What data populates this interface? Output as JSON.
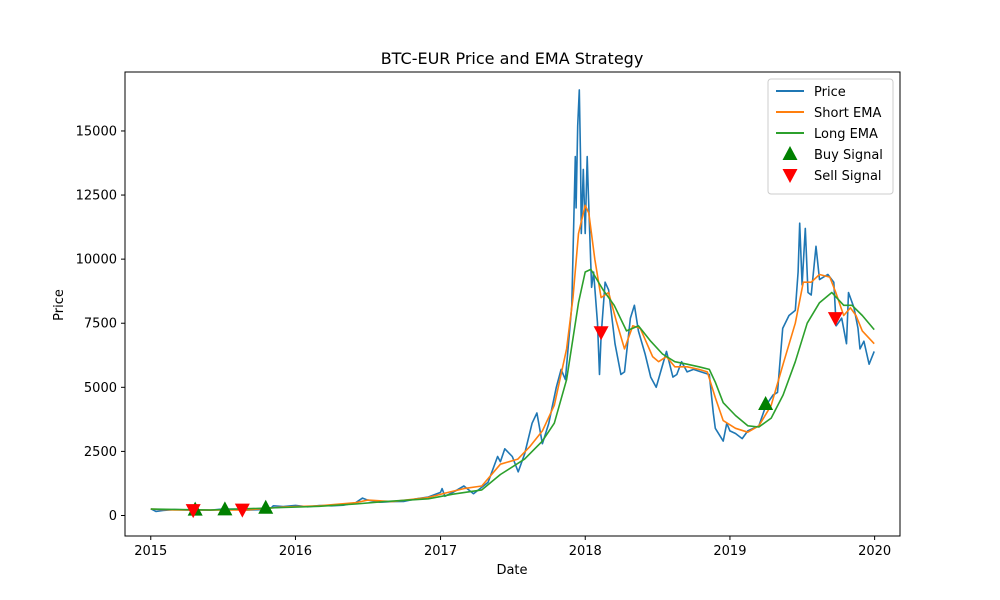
{
  "chart_data": {
    "type": "line",
    "title": "BTC-EUR Price and EMA Strategy",
    "xlabel": "Date",
    "ylabel": "Price",
    "x_range": [
      "2014-10-28",
      "2020-03-05"
    ],
    "y_range": [
      -800,
      17300
    ],
    "x_ticks": [
      {
        "date": "2015-01-01",
        "label": "2015"
      },
      {
        "date": "2016-01-01",
        "label": "2016"
      },
      {
        "date": "2017-01-01",
        "label": "2017"
      },
      {
        "date": "2018-01-01",
        "label": "2018"
      },
      {
        "date": "2019-01-01",
        "label": "2019"
      },
      {
        "date": "2020-01-01",
        "label": "2020"
      }
    ],
    "y_ticks": [
      0,
      2500,
      5000,
      7500,
      10000,
      12500,
      15000
    ],
    "grid": false,
    "legend_position": "top-right",
    "series": [
      {
        "name": "Price",
        "color": "#1f77b4",
        "points": [
          [
            "2015-01-01",
            260
          ],
          [
            "2015-01-14",
            160
          ],
          [
            "2015-02-01",
            200
          ],
          [
            "2015-03-01",
            230
          ],
          [
            "2015-04-01",
            220
          ],
          [
            "2015-05-01",
            210
          ],
          [
            "2015-06-01",
            205
          ],
          [
            "2015-07-01",
            250
          ],
          [
            "2015-08-01",
            250
          ],
          [
            "2015-09-01",
            210
          ],
          [
            "2015-10-01",
            225
          ],
          [
            "2015-11-01",
            300
          ],
          [
            "2015-11-06",
            380
          ],
          [
            "2015-12-01",
            350
          ],
          [
            "2016-01-01",
            395
          ],
          [
            "2016-02-01",
            340
          ],
          [
            "2016-03-01",
            390
          ],
          [
            "2016-04-01",
            380
          ],
          [
            "2016-05-01",
            400
          ],
          [
            "2016-06-01",
            500
          ],
          [
            "2016-06-18",
            680
          ],
          [
            "2016-07-01",
            600
          ],
          [
            "2016-08-01",
            520
          ],
          [
            "2016-09-01",
            540
          ],
          [
            "2016-10-01",
            550
          ],
          [
            "2016-11-01",
            650
          ],
          [
            "2016-12-01",
            720
          ],
          [
            "2017-01-01",
            900
          ],
          [
            "2017-01-05",
            1050
          ],
          [
            "2017-01-12",
            750
          ],
          [
            "2017-02-01",
            900
          ],
          [
            "2017-03-01",
            1150
          ],
          [
            "2017-03-25",
            850
          ],
          [
            "2017-04-15",
            1100
          ],
          [
            "2017-05-01",
            1300
          ],
          [
            "2017-05-25",
            2300
          ],
          [
            "2017-06-01",
            2100
          ],
          [
            "2017-06-12",
            2600
          ],
          [
            "2017-07-01",
            2300
          ],
          [
            "2017-07-16",
            1700
          ],
          [
            "2017-08-01",
            2400
          ],
          [
            "2017-08-20",
            3600
          ],
          [
            "2017-09-01",
            4000
          ],
          [
            "2017-09-15",
            2800
          ],
          [
            "2017-10-01",
            3600
          ],
          [
            "2017-10-20",
            5000
          ],
          [
            "2017-11-01",
            5700
          ],
          [
            "2017-11-12",
            5300
          ],
          [
            "2017-11-28",
            8200
          ],
          [
            "2017-12-07",
            14000
          ],
          [
            "2017-12-09",
            12000
          ],
          [
            "2017-12-13",
            15200
          ],
          [
            "2017-12-17",
            16600
          ],
          [
            "2017-12-20",
            14000
          ],
          [
            "2017-12-22",
            11000
          ],
          [
            "2017-12-27",
            13500
          ],
          [
            "2018-01-01",
            11000
          ],
          [
            "2018-01-06",
            14000
          ],
          [
            "2018-01-09",
            12500
          ],
          [
            "2018-01-17",
            8900
          ],
          [
            "2018-01-22",
            9500
          ],
          [
            "2018-02-01",
            7500
          ],
          [
            "2018-02-06",
            5500
          ],
          [
            "2018-02-10",
            7000
          ],
          [
            "2018-02-20",
            9100
          ],
          [
            "2018-03-01",
            8800
          ],
          [
            "2018-03-17",
            6700
          ],
          [
            "2018-04-01",
            5500
          ],
          [
            "2018-04-10",
            5600
          ],
          [
            "2018-04-25",
            7700
          ],
          [
            "2018-05-05",
            8200
          ],
          [
            "2018-05-15",
            7200
          ],
          [
            "2018-06-01",
            6300
          ],
          [
            "2018-06-15",
            5400
          ],
          [
            "2018-06-29",
            5000
          ],
          [
            "2018-07-10",
            5600
          ],
          [
            "2018-07-25",
            6400
          ],
          [
            "2018-08-10",
            5400
          ],
          [
            "2018-08-20",
            5500
          ],
          [
            "2018-09-01",
            6000
          ],
          [
            "2018-09-15",
            5600
          ],
          [
            "2018-10-01",
            5700
          ],
          [
            "2018-10-20",
            5600
          ],
          [
            "2018-11-10",
            5500
          ],
          [
            "2018-11-20",
            4000
          ],
          [
            "2018-11-25",
            3400
          ],
          [
            "2018-12-15",
            2900
          ],
          [
            "2018-12-24",
            3600
          ],
          [
            "2019-01-01",
            3300
          ],
          [
            "2019-01-15",
            3200
          ],
          [
            "2019-02-01",
            3000
          ],
          [
            "2019-02-15",
            3300
          ],
          [
            "2019-03-01",
            3400
          ],
          [
            "2019-03-15",
            3500
          ],
          [
            "2019-04-02",
            4300
          ],
          [
            "2019-04-20",
            4700
          ],
          [
            "2019-05-01",
            4800
          ],
          [
            "2019-05-14",
            7300
          ],
          [
            "2019-05-30",
            7800
          ],
          [
            "2019-06-15",
            8000
          ],
          [
            "2019-06-22",
            9500
          ],
          [
            "2019-06-26",
            11400
          ],
          [
            "2019-07-02",
            9000
          ],
          [
            "2019-07-10",
            11200
          ],
          [
            "2019-07-17",
            8700
          ],
          [
            "2019-07-25",
            8600
          ],
          [
            "2019-08-06",
            10500
          ],
          [
            "2019-08-15",
            9200
          ],
          [
            "2019-08-25",
            9300
          ],
          [
            "2019-09-05",
            9400
          ],
          [
            "2019-09-20",
            9100
          ],
          [
            "2019-09-26",
            7400
          ],
          [
            "2019-10-10",
            7700
          ],
          [
            "2019-10-22",
            6700
          ],
          [
            "2019-10-27",
            8700
          ],
          [
            "2019-11-10",
            8100
          ],
          [
            "2019-11-20",
            7300
          ],
          [
            "2019-11-25",
            6500
          ],
          [
            "2019-12-05",
            6800
          ],
          [
            "2019-12-18",
            5900
          ],
          [
            "2019-12-31",
            6400
          ]
        ]
      },
      {
        "name": "Short EMA",
        "color": "#ff7f0e",
        "points": [
          [
            "2015-01-01",
            250
          ],
          [
            "2015-03-01",
            220
          ],
          [
            "2015-06-01",
            210
          ],
          [
            "2015-09-01",
            220
          ],
          [
            "2015-12-01",
            330
          ],
          [
            "2016-03-01",
            380
          ],
          [
            "2016-06-01",
            500
          ],
          [
            "2016-07-01",
            600
          ],
          [
            "2016-09-01",
            540
          ],
          [
            "2016-12-01",
            700
          ],
          [
            "2017-01-15",
            880
          ],
          [
            "2017-03-01",
            1050
          ],
          [
            "2017-04-15",
            1150
          ],
          [
            "2017-06-01",
            2000
          ],
          [
            "2017-07-15",
            2200
          ],
          [
            "2017-08-15",
            2700
          ],
          [
            "2017-09-15",
            3300
          ],
          [
            "2017-10-15",
            4300
          ],
          [
            "2017-11-15",
            6500
          ],
          [
            "2017-12-01",
            8500
          ],
          [
            "2017-12-15",
            11000
          ],
          [
            "2018-01-01",
            12100
          ],
          [
            "2018-01-10",
            11800
          ],
          [
            "2018-01-25",
            10000
          ],
          [
            "2018-02-10",
            8500
          ],
          [
            "2018-03-01",
            8700
          ],
          [
            "2018-03-20",
            7600
          ],
          [
            "2018-04-10",
            6500
          ],
          [
            "2018-05-01",
            7400
          ],
          [
            "2018-05-20",
            7300
          ],
          [
            "2018-06-20",
            6200
          ],
          [
            "2018-07-05",
            6000
          ],
          [
            "2018-07-25",
            6200
          ],
          [
            "2018-08-15",
            5800
          ],
          [
            "2018-09-15",
            5800
          ],
          [
            "2018-10-15",
            5700
          ],
          [
            "2018-11-05",
            5600
          ],
          [
            "2018-11-25",
            4600
          ],
          [
            "2018-12-15",
            3700
          ],
          [
            "2019-01-15",
            3400
          ],
          [
            "2019-02-15",
            3250
          ],
          [
            "2019-03-15",
            3500
          ],
          [
            "2019-04-15",
            4300
          ],
          [
            "2019-05-15",
            5900
          ],
          [
            "2019-06-15",
            7500
          ],
          [
            "2019-07-05",
            9100
          ],
          [
            "2019-07-25",
            9100
          ],
          [
            "2019-08-15",
            9400
          ],
          [
            "2019-09-10",
            9300
          ],
          [
            "2019-09-25",
            8700
          ],
          [
            "2019-10-15",
            7800
          ],
          [
            "2019-11-01",
            8100
          ],
          [
            "2019-11-15",
            7800
          ],
          [
            "2019-12-01",
            7200
          ],
          [
            "2019-12-31",
            6700
          ]
        ]
      },
      {
        "name": "Long EMA",
        "color": "#2ca02c",
        "points": [
          [
            "2015-01-01",
            250
          ],
          [
            "2015-06-01",
            215
          ],
          [
            "2015-12-01",
            310
          ],
          [
            "2016-03-01",
            360
          ],
          [
            "2016-06-01",
            450
          ],
          [
            "2016-08-01",
            530
          ],
          [
            "2016-12-01",
            650
          ],
          [
            "2017-02-01",
            830
          ],
          [
            "2017-04-15",
            1000
          ],
          [
            "2017-06-01",
            1600
          ],
          [
            "2017-08-01",
            2200
          ],
          [
            "2017-09-15",
            2900
          ],
          [
            "2017-10-15",
            3600
          ],
          [
            "2017-11-15",
            5300
          ],
          [
            "2017-12-15",
            8300
          ],
          [
            "2018-01-01",
            9500
          ],
          [
            "2018-01-15",
            9600
          ],
          [
            "2018-02-15",
            8800
          ],
          [
            "2018-03-15",
            8200
          ],
          [
            "2018-04-15",
            7200
          ],
          [
            "2018-05-15",
            7400
          ],
          [
            "2018-06-15",
            6800
          ],
          [
            "2018-07-15",
            6300
          ],
          [
            "2018-08-15",
            6000
          ],
          [
            "2018-09-15",
            5900
          ],
          [
            "2018-10-15",
            5800
          ],
          [
            "2018-11-10",
            5700
          ],
          [
            "2018-11-25",
            5200
          ],
          [
            "2018-12-15",
            4400
          ],
          [
            "2019-01-15",
            3900
          ],
          [
            "2019-02-15",
            3500
          ],
          [
            "2019-03-15",
            3450
          ],
          [
            "2019-04-15",
            3800
          ],
          [
            "2019-05-15",
            4700
          ],
          [
            "2019-06-15",
            6000
          ],
          [
            "2019-07-15",
            7500
          ],
          [
            "2019-08-15",
            8300
          ],
          [
            "2019-09-15",
            8700
          ],
          [
            "2019-10-15",
            8200
          ],
          [
            "2019-11-05",
            8200
          ],
          [
            "2019-12-01",
            7800
          ],
          [
            "2019-12-31",
            7250
          ]
        ]
      }
    ],
    "markers": [
      {
        "name": "Buy Signal",
        "color": "#008000",
        "symbol": "triangle-up",
        "points": [
          [
            "2015-04-23",
            230
          ],
          [
            "2015-07-07",
            240
          ],
          [
            "2015-10-18",
            300
          ],
          [
            "2019-04-01",
            4350
          ]
        ]
      },
      {
        "name": "Sell Signal",
        "color": "#ff0000",
        "symbol": "triangle-down",
        "points": [
          [
            "2015-04-18",
            210
          ],
          [
            "2015-08-20",
            230
          ],
          [
            "2018-02-10",
            7150
          ],
          [
            "2019-09-24",
            7700
          ]
        ]
      }
    ]
  }
}
